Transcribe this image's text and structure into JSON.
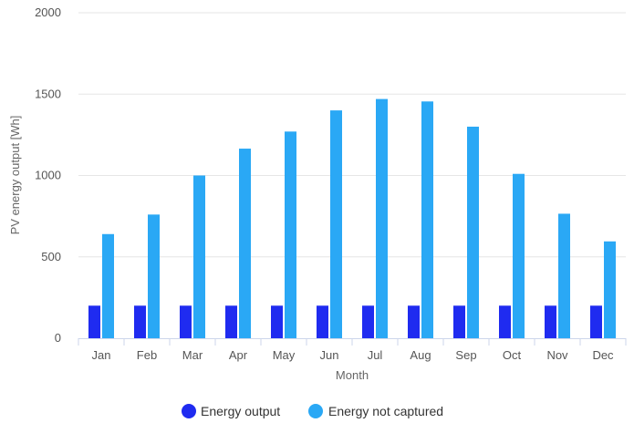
{
  "chart_data": {
    "type": "bar",
    "title": "",
    "xlabel": "Month",
    "ylabel": "PV energy output [Wh]",
    "ylim": [
      0,
      2000
    ],
    "yticks": [
      0,
      500,
      1000,
      1500,
      2000
    ],
    "grid": "horizontal",
    "legend_position": "bottom-center",
    "categories": [
      "Jan",
      "Feb",
      "Mar",
      "Apr",
      "May",
      "Jun",
      "Jul",
      "Aug",
      "Sep",
      "Oct",
      "Nov",
      "Dec"
    ],
    "series": [
      {
        "name": "Energy output",
        "color": "#1f2bf0",
        "values": [
          200,
          200,
          200,
          200,
          200,
          200,
          200,
          200,
          200,
          200,
          200,
          200
        ]
      },
      {
        "name": "Energy not captured",
        "color": "#2aa8f5",
        "values": [
          640,
          760,
          1000,
          1165,
          1270,
          1400,
          1470,
          1455,
          1300,
          1010,
          765,
          595
        ]
      }
    ]
  }
}
